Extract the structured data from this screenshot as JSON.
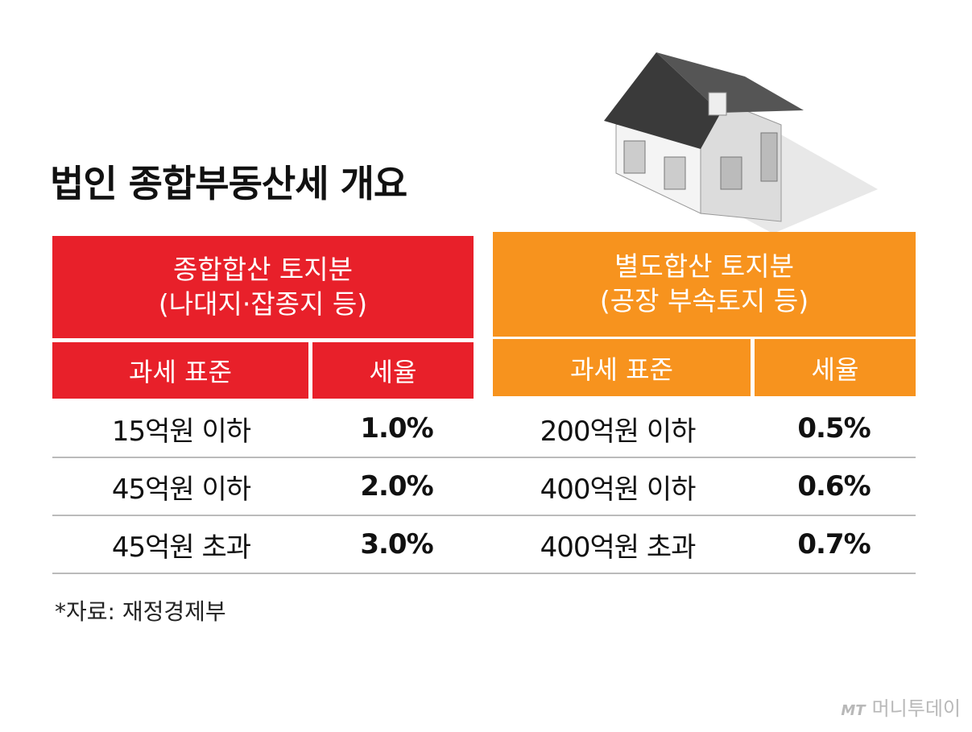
{
  "title": "법인 종합부동산세 개요",
  "tables": [
    {
      "header": [
        "종합합산 토지분",
        "(나대지·잡종지 등)"
      ],
      "columns": [
        "과세 표준",
        "세율"
      ],
      "rows": [
        [
          "15억원 이하",
          "1.0%"
        ],
        [
          "45억원 이하",
          "2.0%"
        ],
        [
          "45억원 초과",
          "3.0%"
        ]
      ]
    },
    {
      "header": [
        "별도합산 토지분",
        "(공장 부속토지 등)"
      ],
      "columns": [
        "과세 표준",
        "세율"
      ],
      "rows": [
        [
          "200억원 이하",
          "0.5%"
        ],
        [
          "400억원 이하",
          "0.6%"
        ],
        [
          "400억원 초과",
          "0.7%"
        ]
      ]
    }
  ],
  "source": "*자료: 재정경제부",
  "logo": {
    "mark": "MT",
    "name": "머니투데이"
  }
}
